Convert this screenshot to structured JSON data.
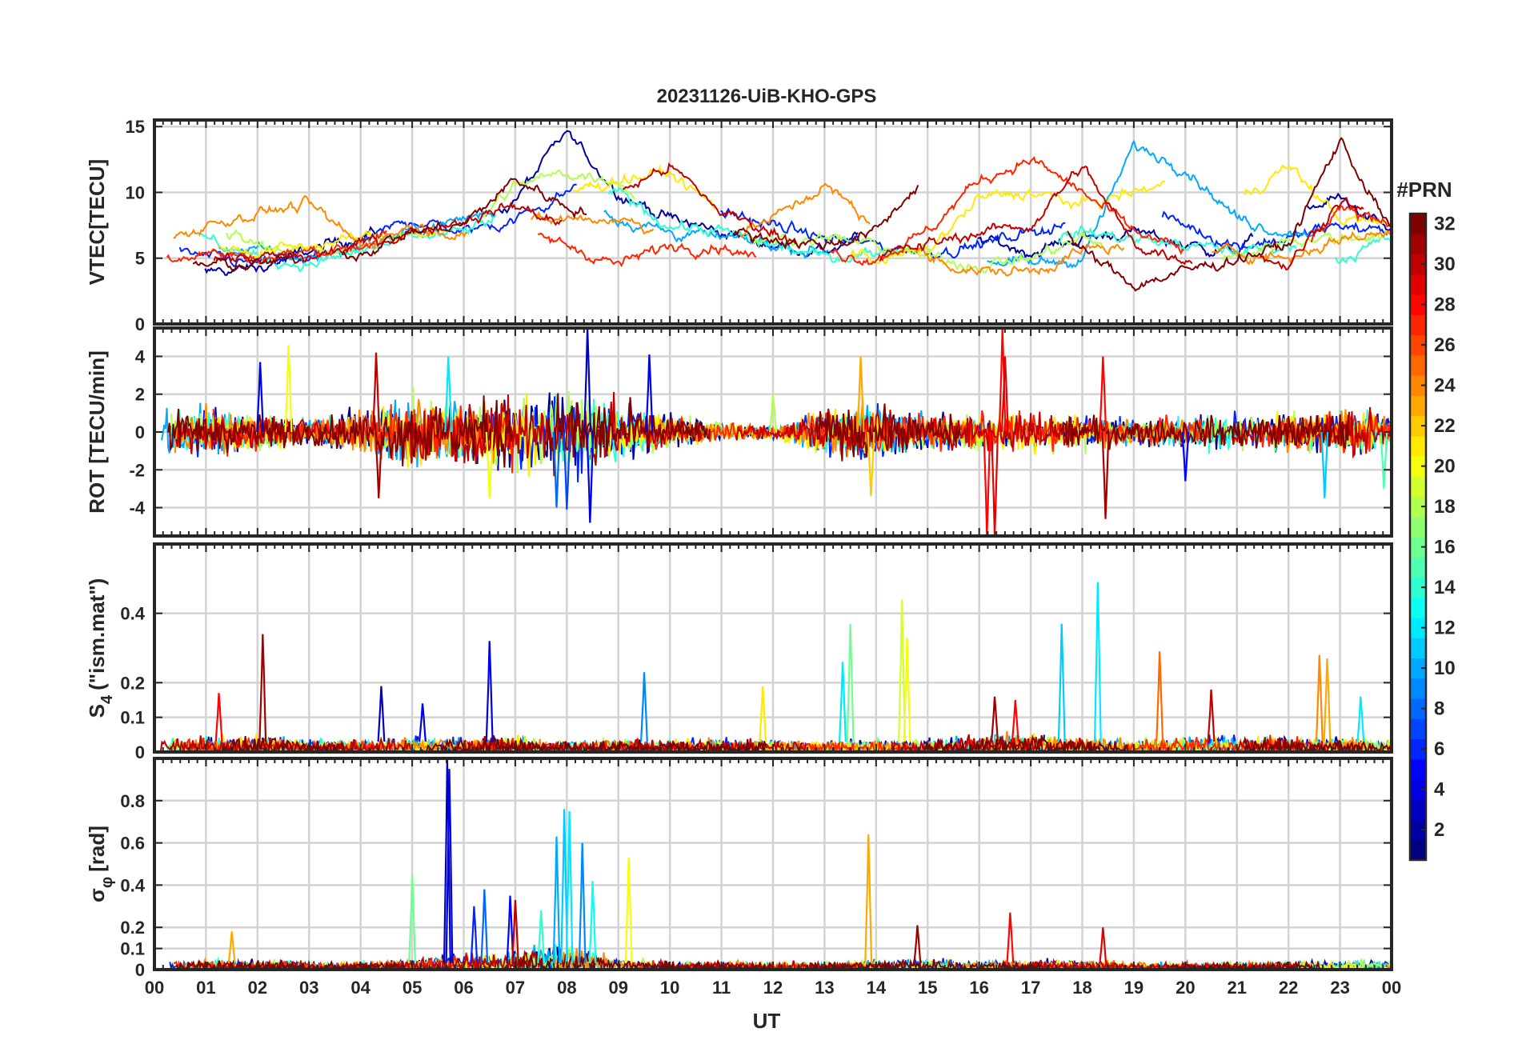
{
  "figure_title": "20231126-UiB-KHO-GPS",
  "xaxis": {
    "label": "UT",
    "range": [
      0,
      24
    ],
    "tick_labels": [
      "00",
      "01",
      "02",
      "03",
      "04",
      "05",
      "06",
      "07",
      "08",
      "09",
      "10",
      "11",
      "12",
      "13",
      "14",
      "15",
      "16",
      "17",
      "18",
      "19",
      "20",
      "21",
      "22",
      "23",
      "00"
    ]
  },
  "colorbar": {
    "label": "#PRN",
    "range": [
      1,
      32
    ],
    "tick_labels": [
      "2",
      "4",
      "6",
      "8",
      "10",
      "12",
      "14",
      "16",
      "18",
      "20",
      "22",
      "24",
      "26",
      "28",
      "30",
      "32"
    ],
    "colormap": "jet"
  },
  "chart_data": [
    {
      "type": "line",
      "id": "vtec",
      "ylabel": "VTEC[TECU]",
      "ylim": [
        0,
        15.5
      ],
      "y_ticks": [
        0,
        5,
        10,
        15
      ],
      "y_tick_labels": [
        "0",
        "5",
        "10",
        "15"
      ],
      "x": [
        0,
        1,
        2,
        3,
        4,
        5,
        6,
        7,
        8,
        9,
        10,
        11,
        12,
        13,
        14,
        15,
        16,
        17,
        18,
        19,
        20,
        21,
        22,
        23,
        24
      ],
      "series": [
        {
          "name": "PRN 2",
          "prn": 2,
          "values": [
            5.5,
            4.0,
            4.2,
            5.5,
            6.8,
            7.0,
            6.5,
            9.5,
            14.5,
            10.0,
            8.0,
            7.0,
            6.0,
            5.5,
            7.0,
            8.5,
            6.5,
            5.5,
            6.5,
            7.0,
            6.0,
            5.5,
            8.5,
            9.5,
            7.0
          ]
        },
        {
          "name": "PRN 6",
          "prn": 6,
          "values": [
            6.0,
            5.0,
            4.5,
            5.0,
            6.0,
            8.0,
            7.0,
            8.0,
            10.0,
            13.0,
            9.0,
            8.5,
            7.5,
            6.5,
            6.0,
            5.5,
            6.0,
            7.0,
            8.0,
            9.0,
            7.5,
            6.0,
            6.5,
            7.5,
            7.0
          ]
        },
        {
          "name": "PRN 10",
          "prn": 10,
          "values": [
            7.0,
            6.0,
            5.5,
            5.0,
            6.0,
            7.0,
            8.0,
            9.0,
            9.5,
            8.0,
            7.0,
            6.5,
            6.0,
            5.5,
            9.5,
            7.0,
            5.0,
            4.5,
            5.0,
            13.5,
            12.0,
            8.0,
            7.0,
            7.5,
            6.5
          ]
        },
        {
          "name": "PRN 14",
          "prn": 14,
          "values": [
            7.5,
            6.5,
            5.0,
            4.5,
            5.5,
            6.5,
            7.0,
            8.5,
            9.0,
            10.0,
            7.5,
            7.0,
            6.0,
            5.0,
            5.5,
            6.0,
            5.5,
            6.0,
            7.0,
            6.5,
            6.0,
            5.5,
            6.0,
            5.0,
            6.5
          ]
        },
        {
          "name": "PRN 18",
          "prn": 18,
          "values": [
            6.5,
            7.5,
            6.0,
            5.5,
            6.0,
            7.0,
            7.0,
            10.5,
            11.5,
            11.0,
            7.0,
            6.5,
            6.5,
            6.5,
            6.0,
            5.0,
            4.5,
            5.0,
            6.5,
            5.5,
            5.0,
            5.0,
            6.5,
            6.5,
            7.0
          ]
        },
        {
          "name": "PRN 21",
          "prn": 21,
          "values": [
            5.5,
            6.0,
            5.5,
            6.0,
            6.5,
            7.0,
            6.5,
            7.0,
            10.0,
            11.0,
            11.5,
            8.5,
            7.0,
            6.0,
            5.0,
            5.5,
            9.5,
            10.0,
            9.0,
            10.0,
            11.0,
            9.5,
            12.0,
            8.0,
            7.5
          ]
        },
        {
          "name": "PRN 24",
          "prn": 24,
          "values": [
            6.0,
            7.5,
            8.5,
            9.0,
            6.0,
            7.5,
            7.0,
            7.5,
            8.0,
            8.0,
            7.0,
            6.5,
            8.0,
            10.5,
            7.5,
            5.0,
            4.0,
            4.0,
            5.5,
            6.0,
            5.0,
            5.5,
            5.0,
            6.5,
            7.0
          ]
        },
        {
          "name": "PRN 27",
          "prn": 27,
          "values": [
            5.0,
            5.5,
            5.0,
            5.5,
            6.0,
            7.5,
            8.0,
            7.0,
            6.0,
            4.5,
            6.0,
            6.0,
            4.5,
            5.5,
            5.0,
            7.0,
            11.0,
            12.5,
            10.0,
            7.0,
            5.5,
            5.0,
            4.5,
            8.5,
            8.0
          ]
        },
        {
          "name": "PRN 30",
          "prn": 30,
          "values": [
            5.0,
            5.0,
            5.0,
            5.0,
            6.0,
            7.0,
            8.0,
            9.0,
            7.5,
            10.0,
            12.0,
            8.5,
            7.0,
            6.0,
            5.0,
            6.0,
            7.0,
            7.5,
            12.0,
            6.0,
            5.0,
            5.5,
            4.5,
            9.5,
            7.0
          ]
        },
        {
          "name": "PRN 32",
          "prn": 32,
          "values": [
            5.0,
            4.5,
            4.5,
            5.0,
            5.5,
            7.0,
            7.5,
            11.0,
            9.0,
            8.0,
            7.5,
            7.0,
            6.5,
            6.0,
            7.0,
            11.5,
            13.0,
            10.5,
            5.5,
            3.0,
            4.0,
            5.0,
            6.0,
            14.0,
            7.0
          ]
        }
      ]
    },
    {
      "type": "line",
      "id": "rot",
      "ylabel": "ROT [TECU/min]",
      "ylim": [
        -5.5,
        5.5
      ],
      "y_ticks": [
        -4,
        -2,
        0,
        2,
        4
      ],
      "y_tick_labels": [
        "-4",
        "-2",
        "0",
        "2",
        "4"
      ],
      "x": [
        0,
        1,
        2,
        3,
        4,
        5,
        6,
        7,
        8,
        9,
        10,
        11,
        12,
        13,
        14,
        15,
        16,
        17,
        18,
        19,
        20,
        21,
        22,
        23,
        24
      ],
      "amplitude_envelope": [
        1.8,
        1.6,
        1.4,
        0.9,
        1.6,
        2.6,
        2.4,
        2.8,
        3.2,
        2.4,
        1.2,
        0.7,
        0.5,
        1.8,
        2.0,
        1.2,
        1.4,
        1.6,
        1.4,
        1.0,
        1.1,
        1.3,
        1.4,
        1.6,
        1.4
      ],
      "series": [
        {
          "name": "PRN 2",
          "prn": 2
        },
        {
          "name": "PRN 6",
          "prn": 6
        },
        {
          "name": "PRN 10",
          "prn": 10
        },
        {
          "name": "PRN 14",
          "prn": 14
        },
        {
          "name": "PRN 18",
          "prn": 18
        },
        {
          "name": "PRN 21",
          "prn": 21
        },
        {
          "name": "PRN 24",
          "prn": 24
        },
        {
          "name": "PRN 27",
          "prn": 27
        },
        {
          "name": "PRN 30",
          "prn": 30
        },
        {
          "name": "PRN 32",
          "prn": 32
        }
      ],
      "spikes": [
        {
          "x": 2.05,
          "y": 3.7,
          "prn": 4
        },
        {
          "x": 2.6,
          "y": 4.6,
          "prn": 20
        },
        {
          "x": 4.3,
          "y": 4.2,
          "prn": 30
        },
        {
          "x": 4.35,
          "y": -3.5,
          "prn": 31
        },
        {
          "x": 5.7,
          "y": 4.0,
          "prn": 12
        },
        {
          "x": 6.5,
          "y": -3.5,
          "prn": 20
        },
        {
          "x": 7.8,
          "y": -4.0,
          "prn": 8
        },
        {
          "x": 8.0,
          "y": -4.1,
          "prn": 7
        },
        {
          "x": 8.4,
          "y": 5.5,
          "prn": 3
        },
        {
          "x": 8.45,
          "y": -4.8,
          "prn": 4
        },
        {
          "x": 9.6,
          "y": 4.1,
          "prn": 4
        },
        {
          "x": 12.0,
          "y": 2.0,
          "prn": 18
        },
        {
          "x": 13.7,
          "y": 4.0,
          "prn": 23
        },
        {
          "x": 13.9,
          "y": -3.4,
          "prn": 22
        },
        {
          "x": 16.15,
          "y": -5.5,
          "prn": 28
        },
        {
          "x": 16.3,
          "y": -5.5,
          "prn": 29
        },
        {
          "x": 16.45,
          "y": 5.5,
          "prn": 28
        },
        {
          "x": 16.5,
          "y": 4.0,
          "prn": 29
        },
        {
          "x": 18.4,
          "y": 4.0,
          "prn": 28
        },
        {
          "x": 18.45,
          "y": -4.6,
          "prn": 31
        },
        {
          "x": 20.0,
          "y": -2.6,
          "prn": 5
        },
        {
          "x": 22.7,
          "y": -3.5,
          "prn": 11
        },
        {
          "x": 23.85,
          "y": -3.0,
          "prn": 15
        }
      ]
    },
    {
      "type": "line",
      "id": "s4",
      "ylabel": "S4 (\"ism.mat\")",
      "ylabel_main": "S",
      "ylabel_sub": "4",
      "ylabel_rest": "(\"ism.mat\")",
      "ylim": [
        0,
        0.6
      ],
      "y_ticks": [
        0,
        0.1,
        0.2,
        0.4
      ],
      "y_tick_labels": [
        "0",
        "0.1",
        "0.2",
        "0.4"
      ],
      "x": [
        0,
        1,
        2,
        3,
        4,
        5,
        6,
        7,
        8,
        9,
        10,
        11,
        12,
        13,
        14,
        15,
        16,
        17,
        18,
        19,
        20,
        21,
        22,
        23,
        24
      ],
      "baseline_envelope": [
        0.05,
        0.05,
        0.05,
        0.04,
        0.04,
        0.05,
        0.05,
        0.05,
        0.04,
        0.04,
        0.04,
        0.04,
        0.04,
        0.04,
        0.04,
        0.04,
        0.05,
        0.06,
        0.05,
        0.04,
        0.05,
        0.05,
        0.05,
        0.05,
        0.04
      ],
      "series": [
        {
          "name": "PRN 2",
          "prn": 2
        },
        {
          "name": "PRN 6",
          "prn": 6
        },
        {
          "name": "PRN 10",
          "prn": 10
        },
        {
          "name": "PRN 14",
          "prn": 14
        },
        {
          "name": "PRN 18",
          "prn": 18
        },
        {
          "name": "PRN 21",
          "prn": 21
        },
        {
          "name": "PRN 24",
          "prn": 24
        },
        {
          "name": "PRN 27",
          "prn": 27
        },
        {
          "name": "PRN 30",
          "prn": 30
        },
        {
          "name": "PRN 32",
          "prn": 32
        }
      ],
      "spikes": [
        {
          "x": 1.25,
          "y": 0.17,
          "prn": 28
        },
        {
          "x": 2.1,
          "y": 0.34,
          "prn": 31
        },
        {
          "x": 4.4,
          "y": 0.19,
          "prn": 3
        },
        {
          "x": 5.2,
          "y": 0.14,
          "prn": 4
        },
        {
          "x": 6.5,
          "y": 0.32,
          "prn": 4
        },
        {
          "x": 9.5,
          "y": 0.23,
          "prn": 9
        },
        {
          "x": 11.8,
          "y": 0.19,
          "prn": 21
        },
        {
          "x": 13.35,
          "y": 0.26,
          "prn": 12
        },
        {
          "x": 13.5,
          "y": 0.37,
          "prn": 16
        },
        {
          "x": 14.5,
          "y": 0.44,
          "prn": 19
        },
        {
          "x": 14.6,
          "y": 0.33,
          "prn": 20
        },
        {
          "x": 16.3,
          "y": 0.16,
          "prn": 31
        },
        {
          "x": 16.7,
          "y": 0.15,
          "prn": 28
        },
        {
          "x": 17.6,
          "y": 0.37,
          "prn": 11
        },
        {
          "x": 18.3,
          "y": 0.49,
          "prn": 12
        },
        {
          "x": 19.5,
          "y": 0.29,
          "prn": 25
        },
        {
          "x": 20.5,
          "y": 0.18,
          "prn": 30
        },
        {
          "x": 22.6,
          "y": 0.28,
          "prn": 24
        },
        {
          "x": 22.75,
          "y": 0.27,
          "prn": 23
        },
        {
          "x": 23.4,
          "y": 0.16,
          "prn": 12
        }
      ]
    },
    {
      "type": "line",
      "id": "sigma_phi",
      "ylabel": "σφ[rad]",
      "ylabel_main": "σ",
      "ylabel_sub": "φ",
      "ylabel_rest": "[rad]",
      "ylim": [
        0,
        1.0
      ],
      "y_ticks": [
        0,
        0.1,
        0.2,
        0.4,
        0.6,
        0.8
      ],
      "y_tick_labels": [
        "0",
        "0.1",
        "0.2",
        "0.4",
        "0.6",
        "0.8"
      ],
      "x": [
        0,
        1,
        2,
        3,
        4,
        5,
        6,
        7,
        8,
        9,
        10,
        11,
        12,
        13,
        14,
        15,
        16,
        17,
        18,
        19,
        20,
        21,
        22,
        23,
        24
      ],
      "baseline_envelope": [
        0.05,
        0.05,
        0.05,
        0.04,
        0.04,
        0.06,
        0.09,
        0.1,
        0.14,
        0.06,
        0.04,
        0.04,
        0.04,
        0.04,
        0.05,
        0.06,
        0.04,
        0.05,
        0.05,
        0.04,
        0.04,
        0.04,
        0.04,
        0.05,
        0.05
      ],
      "series": [
        {
          "name": "PRN 2",
          "prn": 2
        },
        {
          "name": "PRN 6",
          "prn": 6
        },
        {
          "name": "PRN 10",
          "prn": 10
        },
        {
          "name": "PRN 14",
          "prn": 14
        },
        {
          "name": "PRN 18",
          "prn": 18
        },
        {
          "name": "PRN 21",
          "prn": 21
        },
        {
          "name": "PRN 24",
          "prn": 24
        },
        {
          "name": "PRN 27",
          "prn": 27
        },
        {
          "name": "PRN 30",
          "prn": 30
        },
        {
          "name": "PRN 32",
          "prn": 32
        }
      ],
      "spikes": [
        {
          "x": 1.5,
          "y": 0.18,
          "prn": 23
        },
        {
          "x": 5.0,
          "y": 0.45,
          "prn": 16
        },
        {
          "x": 5.68,
          "y": 1.0,
          "prn": 3
        },
        {
          "x": 5.72,
          "y": 0.95,
          "prn": 4
        },
        {
          "x": 6.2,
          "y": 0.3,
          "prn": 6
        },
        {
          "x": 6.4,
          "y": 0.38,
          "prn": 8
        },
        {
          "x": 6.9,
          "y": 0.35,
          "prn": 5
        },
        {
          "x": 7.0,
          "y": 0.33,
          "prn": 30
        },
        {
          "x": 7.5,
          "y": 0.28,
          "prn": 14
        },
        {
          "x": 7.8,
          "y": 0.63,
          "prn": 10
        },
        {
          "x": 7.95,
          "y": 0.76,
          "prn": 11
        },
        {
          "x": 8.05,
          "y": 0.75,
          "prn": 12
        },
        {
          "x": 8.3,
          "y": 0.6,
          "prn": 9
        },
        {
          "x": 8.5,
          "y": 0.42,
          "prn": 13
        },
        {
          "x": 9.2,
          "y": 0.53,
          "prn": 20
        },
        {
          "x": 13.85,
          "y": 0.64,
          "prn": 23
        },
        {
          "x": 14.8,
          "y": 0.21,
          "prn": 31
        },
        {
          "x": 16.6,
          "y": 0.27,
          "prn": 28
        },
        {
          "x": 18.4,
          "y": 0.2,
          "prn": 29
        }
      ]
    }
  ]
}
